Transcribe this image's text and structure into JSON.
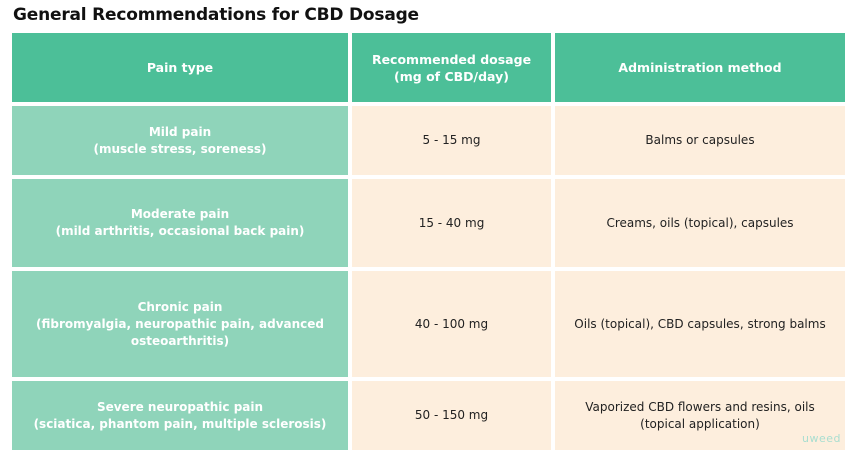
{
  "title": "General Recommendations for CBD Dosage",
  "table": {
    "headers": [
      "Pain type",
      "Recommended dosage\n(mg of CBD/day)",
      "Administration method"
    ],
    "rows": [
      {
        "pain": "Mild pain\n(muscle stress, soreness)",
        "dosage": "5 - 15 mg",
        "method": "Balms or capsules"
      },
      {
        "pain": "Moderate pain\n(mild arthritis, occasional back pain)",
        "dosage": "15 - 40 mg",
        "method": "Creams, oils (topical), capsules"
      },
      {
        "pain": "Chronic pain\n(fibromyalgia, neuropathic pain, advanced\nosteoarthritis)",
        "dosage": "40 - 100 mg",
        "method": "Oils (topical), CBD capsules, strong balms"
      },
      {
        "pain": "Severe neuropathic pain\n(sciatica, phantom pain, multiple sclerosis)",
        "dosage": "50 - 150 mg",
        "method": "Vaporized CBD flowers and resins, oils\n(topical application)"
      }
    ]
  },
  "logo": "uweed",
  "colors": {
    "header": "#4cbf98",
    "pain_cell": "#8fd4ba",
    "value_cell": "#fdeedd"
  }
}
